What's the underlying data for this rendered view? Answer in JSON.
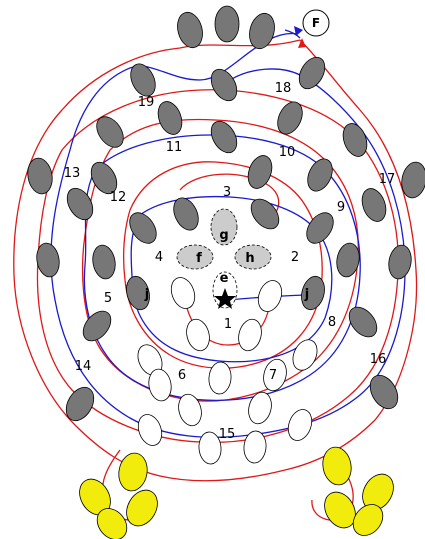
{
  "colors": {
    "dark_oval": "#777777",
    "light_oval": "#cccccc",
    "yellow_oval": "#f2ec0c",
    "red_path": "#e01818",
    "blue_path": "#1a1ad0",
    "outline": "#000000"
  },
  "regions": [
    "1",
    "2",
    "3",
    "4",
    "5",
    "6",
    "7",
    "8",
    "9",
    "10",
    "11",
    "12",
    "13",
    "14",
    "15",
    "16",
    "17",
    "18",
    "19"
  ],
  "letters": {
    "e": "e",
    "f": "f",
    "g": "g",
    "h": "h",
    "j_left": "j",
    "j_right": "j"
  },
  "finish_label": "F",
  "start_icon": "star-icon"
}
